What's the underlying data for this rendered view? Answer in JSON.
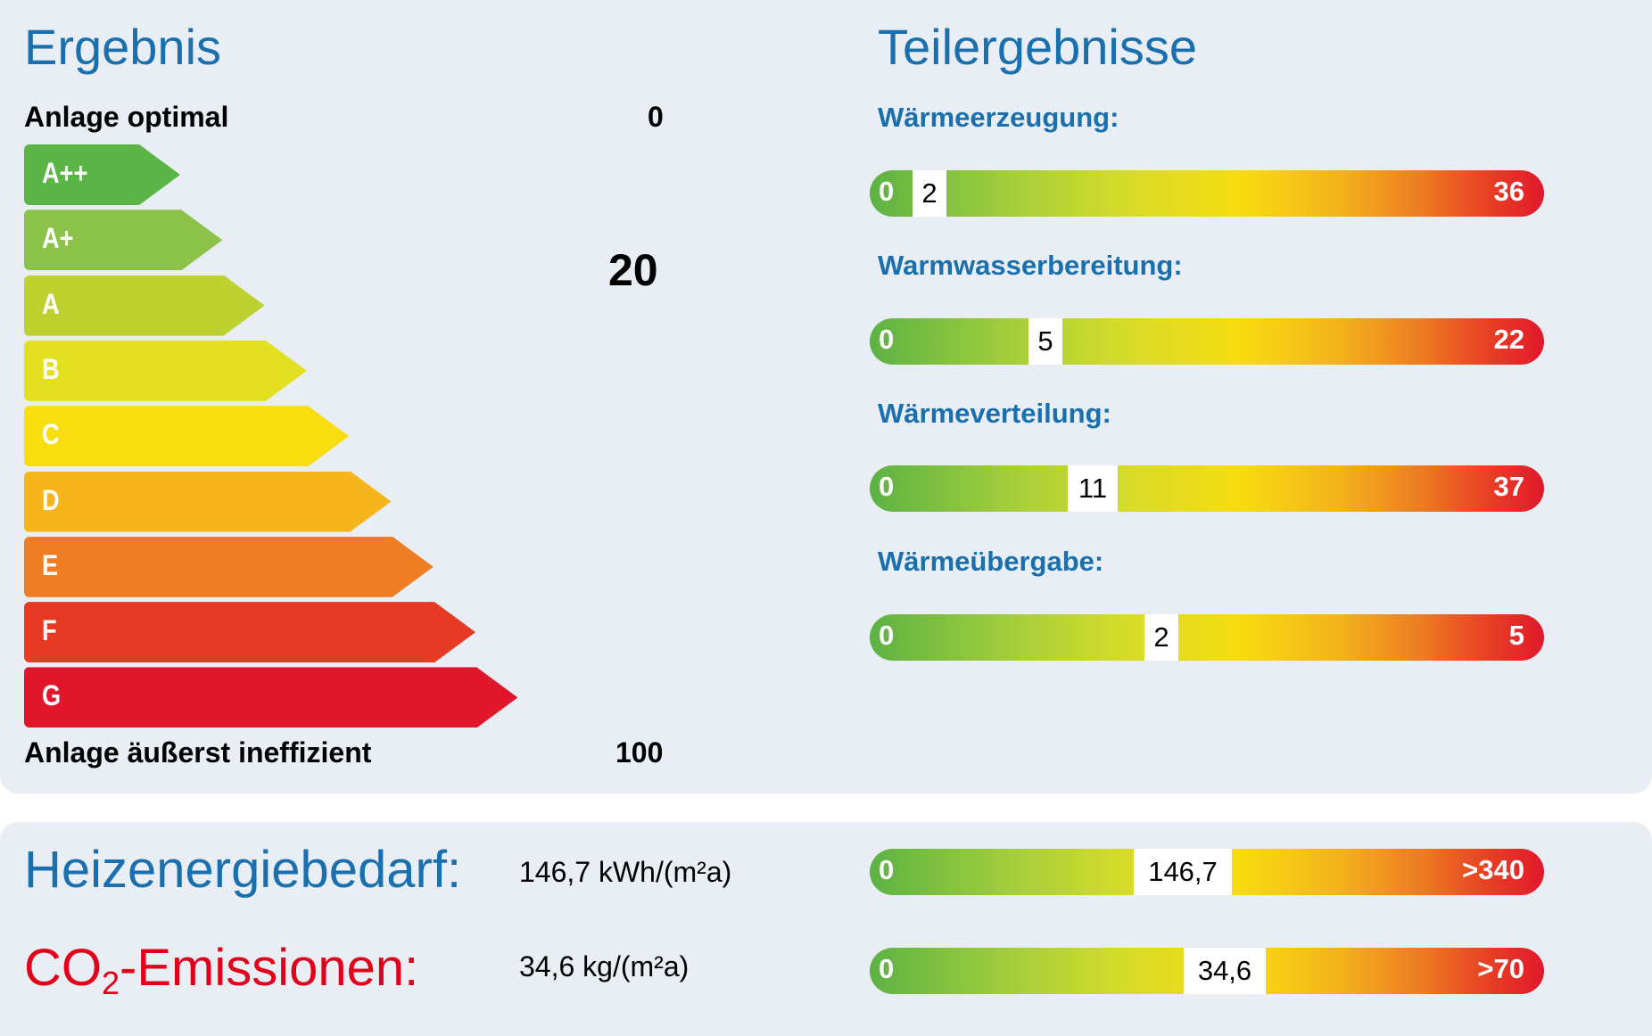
{
  "ergebnis": {
    "title": "Ergebnis",
    "optimal_label": "Anlage optimal",
    "optimal_value": "0",
    "score": "20",
    "worst_label": "Anlage äußerst ineffizient",
    "worst_value": "100",
    "classes": [
      {
        "label": "A++",
        "color": "#5bb446"
      },
      {
        "label": "A+",
        "color": "#8dc24a"
      },
      {
        "label": "A",
        "color": "#bdd131"
      },
      {
        "label": "B",
        "color": "#e3e021"
      },
      {
        "label": "C",
        "color": "#f8dd0f"
      },
      {
        "label": "D",
        "color": "#f6b51b"
      },
      {
        "label": "E",
        "color": "#ee7d23"
      },
      {
        "label": "F",
        "color": "#e73a25"
      },
      {
        "label": "G",
        "color": "#e2162b"
      }
    ]
  },
  "teilergebnisse": {
    "title": "Teilergebnisse",
    "items": [
      {
        "label": "Wärmeerzeugung:",
        "min": "0",
        "value": "2",
        "max": "36",
        "fraction": 0.056
      },
      {
        "label": "Warmwasserbereitung:",
        "min": "0",
        "value": "5",
        "max": "22",
        "fraction": 0.227
      },
      {
        "label": "Wärmeverteilung:",
        "min": "0",
        "value": "11",
        "max": "37",
        "fraction": 0.297
      },
      {
        "label": "Wärmeübergabe:",
        "min": "0",
        "value": "2",
        "max": "5",
        "fraction": 0.4
      }
    ]
  },
  "bottom": {
    "heizenergie_label": "Heizenergiebedarf:",
    "heizenergie_value": "146,7 kWh/(m²a)",
    "heizenergie_bar": {
      "min": "0",
      "value": "146,7",
      "max": ">340",
      "fraction": 0.431
    },
    "co2_label_prefix": "CO",
    "co2_label_sub": "2",
    "co2_label_suffix": "-Emissionen:",
    "co2_value": "34,6 kg/(m²a)",
    "co2_bar": {
      "min": "0",
      "value": "34,6",
      "max": ">70",
      "fraction": 0.494
    },
    "co2_color": "#e2001a"
  }
}
